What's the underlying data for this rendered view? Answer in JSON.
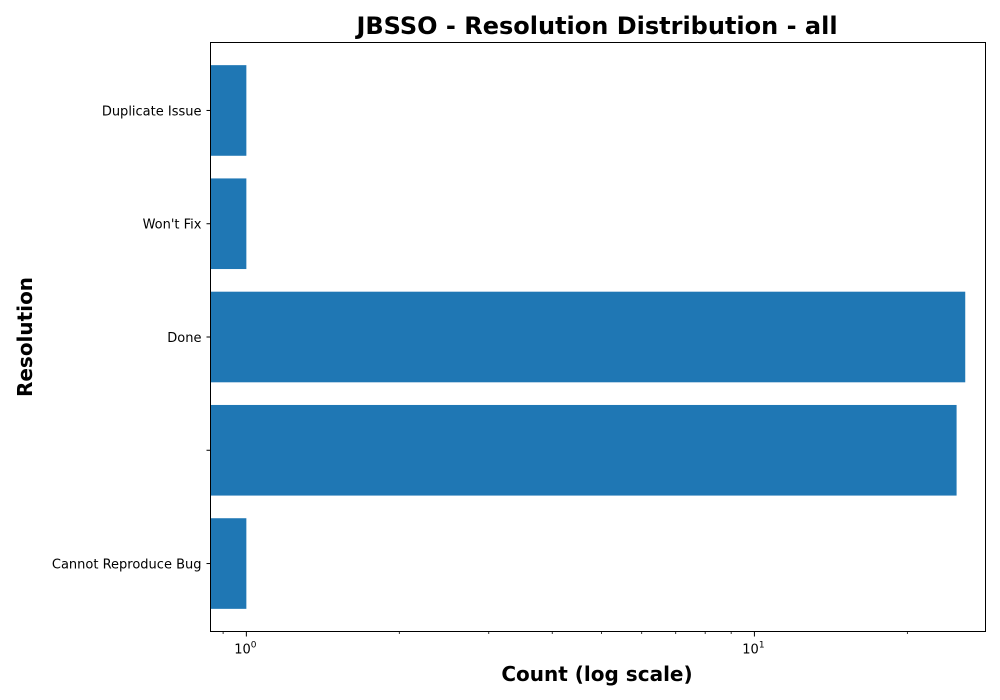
{
  "chart_data": {
    "type": "bar",
    "orientation": "horizontal",
    "title": "JBSSO - Resolution Distribution - all",
    "xlabel": "Count (log scale)",
    "ylabel": "Resolution",
    "xscale": "log",
    "xlim": [
      0.85,
      28.5
    ],
    "x_ticks": [
      {
        "base": "10",
        "exp": "0",
        "value": 1
      },
      {
        "base": "10",
        "exp": "1",
        "value": 10
      }
    ],
    "categories": [
      "Cannot Reproduce Bug",
      "",
      "Done",
      "Won't Fix",
      "Duplicate Issue"
    ],
    "values": [
      1,
      25,
      26,
      1,
      1
    ],
    "bar_color": "#1f77b4",
    "grid": false,
    "legend": "none"
  }
}
